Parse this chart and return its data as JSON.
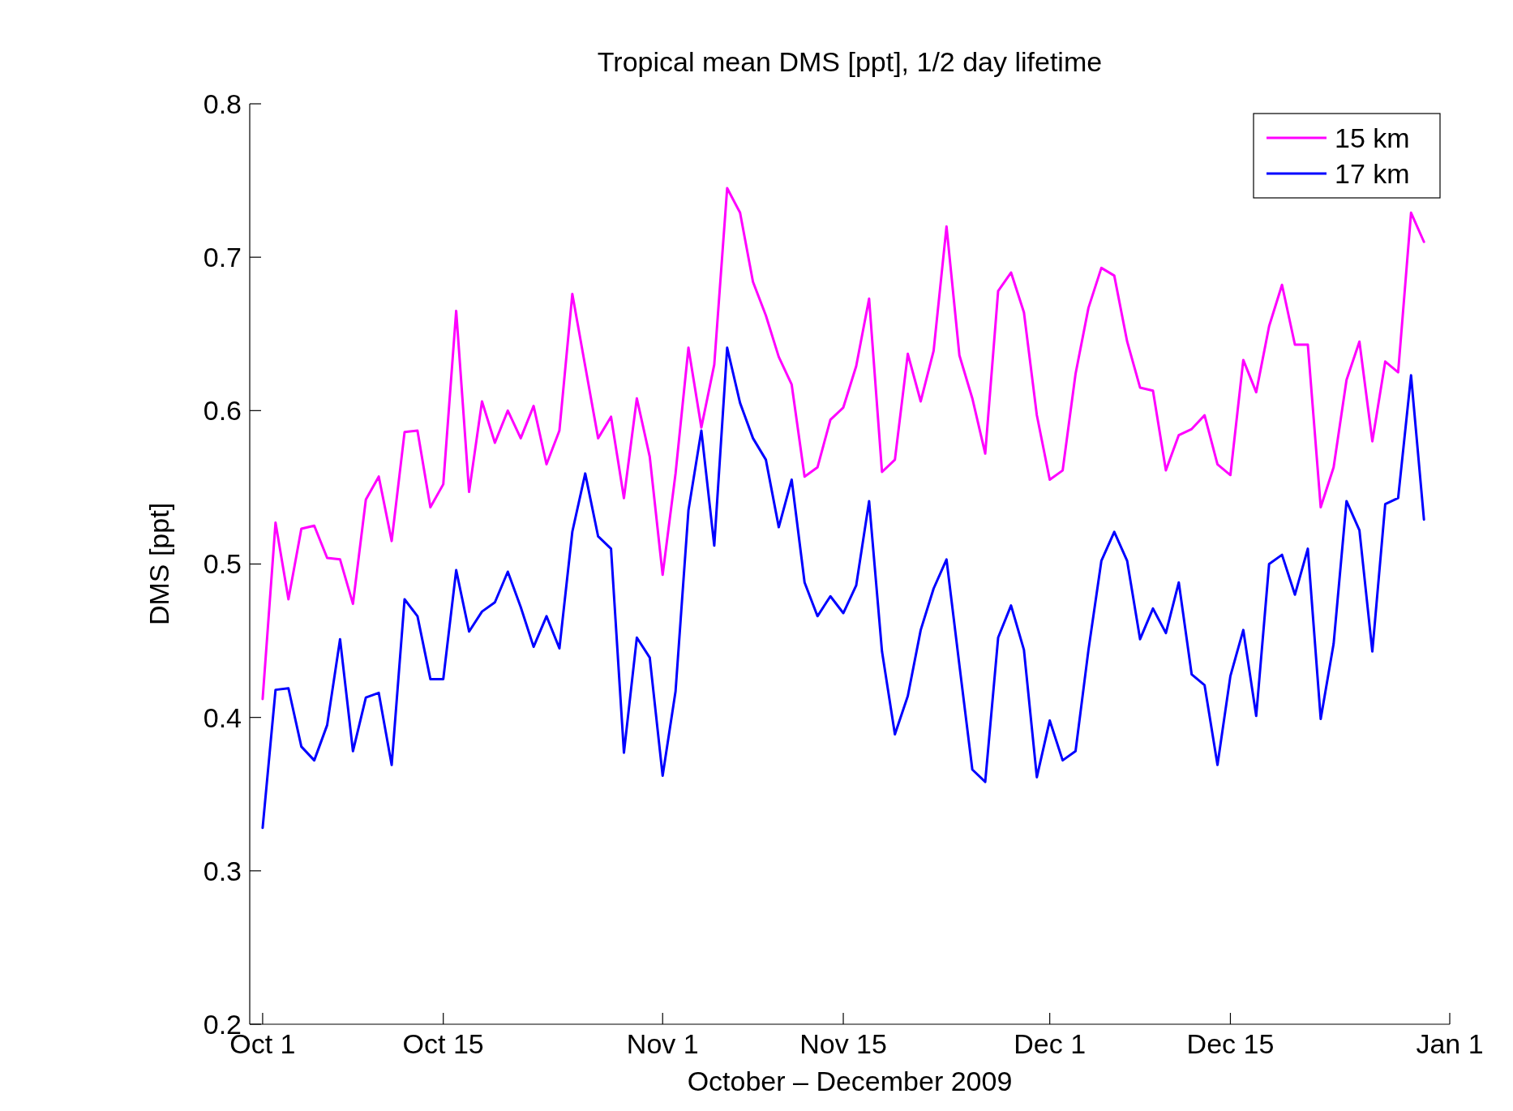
{
  "chart_data": {
    "type": "line",
    "title": "Tropical mean DMS [ppt], 1/2 day lifetime",
    "xlabel": "October – December 2009",
    "ylabel": "DMS [ppt]",
    "x": [
      "2009-10-01",
      "2009-10-02",
      "2009-10-03",
      "2009-10-04",
      "2009-10-05",
      "2009-10-06",
      "2009-10-07",
      "2009-10-08",
      "2009-10-09",
      "2009-10-10",
      "2009-10-11",
      "2009-10-12",
      "2009-10-13",
      "2009-10-14",
      "2009-10-15",
      "2009-10-16",
      "2009-10-17",
      "2009-10-18",
      "2009-10-19",
      "2009-10-20",
      "2009-10-21",
      "2009-10-22",
      "2009-10-23",
      "2009-10-24",
      "2009-10-25",
      "2009-10-26",
      "2009-10-27",
      "2009-10-28",
      "2009-10-29",
      "2009-10-30",
      "2009-10-31",
      "2009-11-01",
      "2009-11-02",
      "2009-11-03",
      "2009-11-04",
      "2009-11-05",
      "2009-11-06",
      "2009-11-07",
      "2009-11-08",
      "2009-11-09",
      "2009-11-10",
      "2009-11-11",
      "2009-11-12",
      "2009-11-13",
      "2009-11-14",
      "2009-11-15",
      "2009-11-16",
      "2009-11-17",
      "2009-11-18",
      "2009-11-19",
      "2009-11-20",
      "2009-11-21",
      "2009-11-22",
      "2009-11-23",
      "2009-11-24",
      "2009-11-25",
      "2009-11-26",
      "2009-11-27",
      "2009-11-28",
      "2009-11-29",
      "2009-11-30",
      "2009-12-01",
      "2009-12-02",
      "2009-12-03",
      "2009-12-04",
      "2009-12-05",
      "2009-12-06",
      "2009-12-07",
      "2009-12-08",
      "2009-12-09",
      "2009-12-10",
      "2009-12-11",
      "2009-12-12",
      "2009-12-13",
      "2009-12-14",
      "2009-12-15",
      "2009-12-16",
      "2009-12-17",
      "2009-12-18",
      "2009-12-19",
      "2009-12-20",
      "2009-12-21",
      "2009-12-22",
      "2009-12-23",
      "2009-12-24",
      "2009-12-25",
      "2009-12-26",
      "2009-12-27",
      "2009-12-28",
      "2009-12-29",
      "2009-12-30"
    ],
    "series": [
      {
        "name": "15 km",
        "color": "#ff00ff",
        "values": [
          0.412,
          0.527,
          0.477,
          0.523,
          0.525,
          0.504,
          0.503,
          0.474,
          0.542,
          0.557,
          0.515,
          0.586,
          0.587,
          0.537,
          0.552,
          0.665,
          0.547,
          0.606,
          0.579,
          0.6,
          0.582,
          0.603,
          0.565,
          0.587,
          0.676,
          0.629,
          0.582,
          0.596,
          0.543,
          0.608,
          0.57,
          0.493,
          0.559,
          0.641,
          0.589,
          0.63,
          0.745,
          0.729,
          0.684,
          0.662,
          0.635,
          0.617,
          0.557,
          0.563,
          0.594,
          0.602,
          0.629,
          0.673,
          0.56,
          0.568,
          0.637,
          0.606,
          0.639,
          0.72,
          0.636,
          0.608,
          0.572,
          0.678,
          0.69,
          0.664,
          0.597,
          0.555,
          0.561,
          0.624,
          0.667,
          0.693,
          0.688,
          0.645,
          0.615,
          0.613,
          0.561,
          0.584,
          0.588,
          0.597,
          0.565,
          0.558,
          0.633,
          0.612,
          0.655,
          0.682,
          0.643,
          0.643,
          0.537,
          0.563,
          0.62,
          0.645,
          0.58,
          0.632,
          0.625,
          0.729,
          0.71
        ]
      },
      {
        "name": "17 km",
        "color": "#0000ff",
        "values": [
          0.328,
          0.418,
          0.419,
          0.381,
          0.372,
          0.395,
          0.451,
          0.378,
          0.413,
          0.416,
          0.369,
          0.477,
          0.466,
          0.425,
          0.425,
          0.496,
          0.456,
          0.469,
          0.475,
          0.495,
          0.472,
          0.446,
          0.466,
          0.445,
          0.521,
          0.559,
          0.518,
          0.51,
          0.377,
          0.452,
          0.439,
          0.362,
          0.417,
          0.535,
          0.587,
          0.512,
          0.641,
          0.605,
          0.582,
          0.568,
          0.524,
          0.555,
          0.488,
          0.466,
          0.479,
          0.468,
          0.486,
          0.541,
          0.443,
          0.389,
          0.414,
          0.457,
          0.484,
          0.503,
          0.434,
          0.366,
          0.358,
          0.452,
          0.473,
          0.444,
          0.361,
          0.398,
          0.372,
          0.378,
          0.444,
          0.502,
          0.521,
          0.502,
          0.451,
          0.471,
          0.455,
          0.488,
          0.428,
          0.421,
          0.369,
          0.427,
          0.457,
          0.401,
          0.5,
          0.506,
          0.48,
          0.51,
          0.399,
          0.448,
          0.541,
          0.522,
          0.443,
          0.539,
          0.543,
          0.623,
          0.529
        ]
      }
    ],
    "xlim": [
      "2009-09-30",
      "2010-01-01"
    ],
    "xticks": [
      {
        "value": "2009-10-01",
        "label": "Oct 1"
      },
      {
        "value": "2009-10-15",
        "label": "Oct 15"
      },
      {
        "value": "2009-11-01",
        "label": "Nov 1"
      },
      {
        "value": "2009-11-15",
        "label": "Nov 15"
      },
      {
        "value": "2009-12-01",
        "label": "Dec 1"
      },
      {
        "value": "2009-12-15",
        "label": "Dec 15"
      },
      {
        "value": "2010-01-01",
        "label": "Jan 1"
      }
    ],
    "ylim": [
      0.2,
      0.8
    ],
    "yticks": [
      0.2,
      0.3,
      0.4,
      0.5,
      0.6,
      0.7,
      0.8
    ],
    "legend": "top right",
    "line_style": "solid"
  }
}
